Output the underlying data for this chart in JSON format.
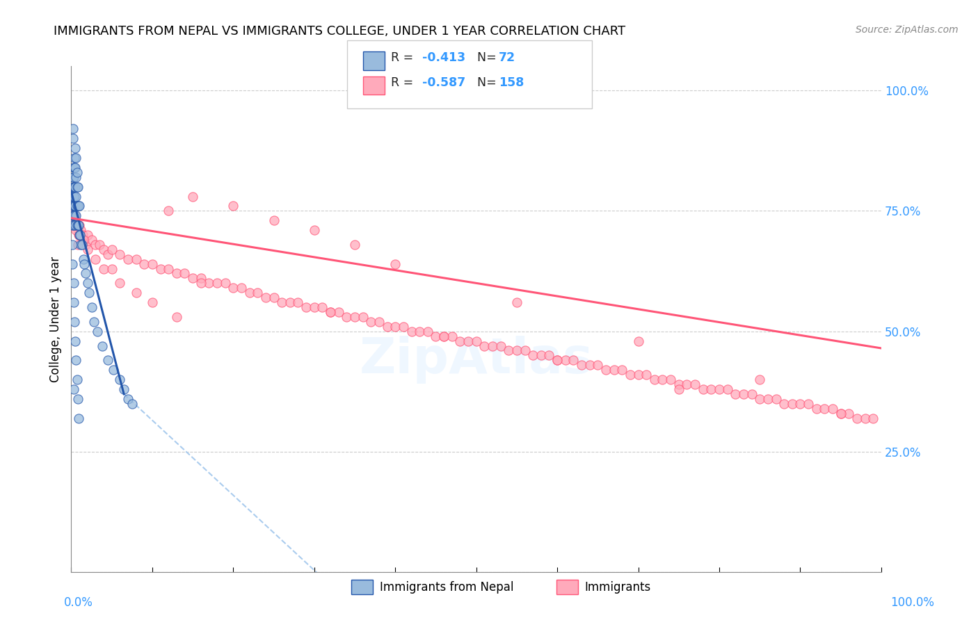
{
  "title": "IMMIGRANTS FROM NEPAL VS IMMIGRANTS COLLEGE, UNDER 1 YEAR CORRELATION CHART",
  "source": "Source: ZipAtlas.com",
  "ylabel": "College, Under 1 year",
  "legend_label1": "Immigrants from Nepal",
  "legend_label2": "Immigrants",
  "color_blue": "#99BBDD",
  "color_pink": "#FFAABB",
  "color_blue_line": "#2255AA",
  "color_pink_line": "#FF5577",
  "color_dashed": "#AACCEE",
  "watermark": "ZipAtlas",
  "blue_scatter_x": [
    0.001,
    0.001,
    0.001,
    0.002,
    0.002,
    0.002,
    0.002,
    0.002,
    0.003,
    0.003,
    0.003,
    0.003,
    0.003,
    0.003,
    0.003,
    0.004,
    0.004,
    0.004,
    0.004,
    0.004,
    0.004,
    0.005,
    0.005,
    0.005,
    0.005,
    0.005,
    0.006,
    0.006,
    0.006,
    0.006,
    0.007,
    0.007,
    0.007,
    0.007,
    0.008,
    0.008,
    0.008,
    0.009,
    0.009,
    0.01,
    0.01,
    0.011,
    0.012,
    0.013,
    0.015,
    0.016,
    0.018,
    0.02,
    0.022,
    0.025,
    0.028,
    0.032,
    0.038,
    0.045,
    0.052,
    0.06,
    0.065,
    0.07,
    0.075,
    0.002,
    0.001,
    0.001,
    0.003,
    0.003,
    0.004,
    0.005,
    0.006,
    0.007,
    0.008,
    0.009,
    0.002,
    0.003
  ],
  "blue_scatter_y": [
    0.76,
    0.74,
    0.72,
    0.82,
    0.8,
    0.78,
    0.76,
    0.74,
    0.84,
    0.82,
    0.8,
    0.78,
    0.76,
    0.74,
    0.72,
    0.86,
    0.84,
    0.8,
    0.78,
    0.76,
    0.74,
    0.88,
    0.84,
    0.8,
    0.76,
    0.72,
    0.86,
    0.82,
    0.78,
    0.74,
    0.83,
    0.8,
    0.76,
    0.72,
    0.8,
    0.76,
    0.72,
    0.76,
    0.72,
    0.76,
    0.7,
    0.7,
    0.68,
    0.68,
    0.65,
    0.64,
    0.62,
    0.6,
    0.58,
    0.55,
    0.52,
    0.5,
    0.47,
    0.44,
    0.42,
    0.4,
    0.38,
    0.36,
    0.35,
    0.92,
    0.68,
    0.64,
    0.6,
    0.56,
    0.52,
    0.48,
    0.44,
    0.4,
    0.36,
    0.32,
    0.9,
    0.38
  ],
  "pink_scatter_x": [
    0.001,
    0.002,
    0.003,
    0.004,
    0.005,
    0.006,
    0.007,
    0.008,
    0.009,
    0.01,
    0.012,
    0.014,
    0.016,
    0.018,
    0.02,
    0.025,
    0.03,
    0.035,
    0.04,
    0.045,
    0.05,
    0.06,
    0.07,
    0.08,
    0.09,
    0.1,
    0.11,
    0.12,
    0.13,
    0.14,
    0.15,
    0.16,
    0.17,
    0.18,
    0.19,
    0.2,
    0.21,
    0.22,
    0.23,
    0.24,
    0.25,
    0.26,
    0.27,
    0.28,
    0.29,
    0.3,
    0.31,
    0.32,
    0.33,
    0.34,
    0.35,
    0.36,
    0.37,
    0.38,
    0.39,
    0.4,
    0.41,
    0.42,
    0.43,
    0.44,
    0.45,
    0.46,
    0.47,
    0.48,
    0.49,
    0.5,
    0.51,
    0.52,
    0.53,
    0.54,
    0.55,
    0.56,
    0.57,
    0.58,
    0.59,
    0.6,
    0.61,
    0.62,
    0.63,
    0.64,
    0.65,
    0.66,
    0.67,
    0.68,
    0.69,
    0.7,
    0.71,
    0.72,
    0.73,
    0.74,
    0.75,
    0.76,
    0.77,
    0.78,
    0.79,
    0.8,
    0.81,
    0.82,
    0.83,
    0.84,
    0.85,
    0.86,
    0.87,
    0.88,
    0.89,
    0.9,
    0.91,
    0.92,
    0.93,
    0.94,
    0.95,
    0.96,
    0.97,
    0.98,
    0.99,
    0.003,
    0.006,
    0.01,
    0.015,
    0.02,
    0.03,
    0.04,
    0.06,
    0.08,
    0.1,
    0.13,
    0.001,
    0.002,
    0.004,
    0.005,
    0.15,
    0.2,
    0.25,
    0.3,
    0.008,
    0.12,
    0.35,
    0.4,
    0.55,
    0.7,
    0.85,
    0.95,
    0.16,
    0.05,
    0.32,
    0.46,
    0.6,
    0.75
  ],
  "pink_scatter_y": [
    0.76,
    0.74,
    0.73,
    0.72,
    0.74,
    0.73,
    0.72,
    0.71,
    0.7,
    0.72,
    0.71,
    0.7,
    0.69,
    0.68,
    0.7,
    0.69,
    0.68,
    0.68,
    0.67,
    0.66,
    0.67,
    0.66,
    0.65,
    0.65,
    0.64,
    0.64,
    0.63,
    0.63,
    0.62,
    0.62,
    0.61,
    0.61,
    0.6,
    0.6,
    0.6,
    0.59,
    0.59,
    0.58,
    0.58,
    0.57,
    0.57,
    0.56,
    0.56,
    0.56,
    0.55,
    0.55,
    0.55,
    0.54,
    0.54,
    0.53,
    0.53,
    0.53,
    0.52,
    0.52,
    0.51,
    0.51,
    0.51,
    0.5,
    0.5,
    0.5,
    0.49,
    0.49,
    0.49,
    0.48,
    0.48,
    0.48,
    0.47,
    0.47,
    0.47,
    0.46,
    0.46,
    0.46,
    0.45,
    0.45,
    0.45,
    0.44,
    0.44,
    0.44,
    0.43,
    0.43,
    0.43,
    0.42,
    0.42,
    0.42,
    0.41,
    0.41,
    0.41,
    0.4,
    0.4,
    0.4,
    0.39,
    0.39,
    0.39,
    0.38,
    0.38,
    0.38,
    0.38,
    0.37,
    0.37,
    0.37,
    0.36,
    0.36,
    0.36,
    0.35,
    0.35,
    0.35,
    0.35,
    0.34,
    0.34,
    0.34,
    0.33,
    0.33,
    0.32,
    0.32,
    0.32,
    0.72,
    0.71,
    0.7,
    0.69,
    0.67,
    0.65,
    0.63,
    0.6,
    0.58,
    0.56,
    0.53,
    0.75,
    0.74,
    0.73,
    0.72,
    0.78,
    0.76,
    0.73,
    0.71,
    0.68,
    0.75,
    0.68,
    0.64,
    0.56,
    0.48,
    0.4,
    0.33,
    0.6,
    0.63,
    0.54,
    0.49,
    0.44,
    0.38
  ],
  "blue_line_x": [
    0.0,
    0.065
  ],
  "blue_line_y": [
    0.79,
    0.37
  ],
  "pink_line_x": [
    0.0,
    1.0
  ],
  "pink_line_y": [
    0.735,
    0.465
  ],
  "dashed_line_x": [
    0.065,
    0.38
  ],
  "dashed_line_y": [
    0.37,
    -0.12
  ],
  "xlim": [
    0.0,
    1.0
  ],
  "ylim": [
    0.0,
    1.05
  ],
  "grid_yticks": [
    0.0,
    0.25,
    0.5,
    0.75,
    1.0
  ],
  "right_yticklabels": [
    "",
    "25.0%",
    "50.0%",
    "75.0%",
    "100.0%"
  ],
  "title_fontsize": 13,
  "source_fontsize": 10
}
